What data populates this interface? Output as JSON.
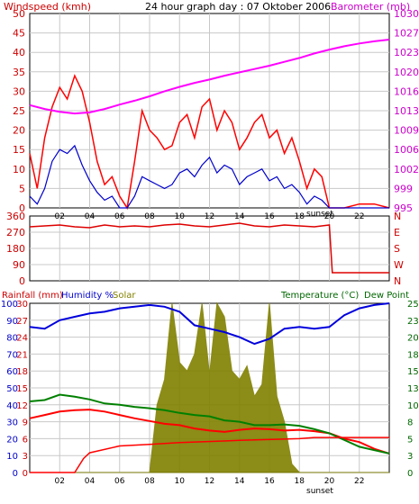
{
  "panel1": {
    "header_left": "Windspeed (kmh)",
    "header_center": "24 hour graph day : 07 Oktober 2006",
    "header_right": "Barometer (mb)",
    "left_ticks": [
      "0",
      "5",
      "10",
      "15",
      "20",
      "25",
      "30",
      "35",
      "40",
      "45",
      "50"
    ],
    "right_ticks": [
      "995",
      "999",
      "1002",
      "1006",
      "1009",
      "1013",
      "1016",
      "1020",
      "1023",
      "1027",
      "1030"
    ],
    "x_ticks": [
      "02",
      "04",
      "06",
      "08",
      "10",
      "12",
      "14",
      "16",
      "18",
      "20",
      "22"
    ],
    "sunset_label": "sunset"
  },
  "panel2": {
    "left_ticks": [
      "0",
      "90",
      "180",
      "270",
      "360"
    ],
    "right_ticks": [
      "N",
      "W",
      "S",
      "E",
      "N"
    ]
  },
  "panel3": {
    "header_rain": "Rainfall (mm)",
    "header_humidity": "Humidity %",
    "header_solar": "Solar",
    "header_temp": "Temperature (°C)",
    "header_dew": "Dew Point",
    "humidity_ticks": [
      "0",
      "10",
      "20",
      "30",
      "40",
      "50",
      "60",
      "70",
      "80",
      "90",
      "100"
    ],
    "rain_ticks": [
      "0",
      "3",
      "6",
      "9",
      "12",
      "15",
      "18",
      "21",
      "24",
      "27",
      "30"
    ],
    "right_ticks": [
      "0",
      "3",
      "5",
      "8",
      "10",
      "13",
      "15",
      "18",
      "20",
      "23",
      "25"
    ],
    "x_ticks": [
      "02",
      "04",
      "06",
      "08",
      "10",
      "12",
      "14",
      "16",
      "18",
      "20",
      "22"
    ],
    "sunset_label": "sunset"
  },
  "colors": {
    "wind": "#ff0000",
    "gust_avg": "#0000cc",
    "barometer": "#ff00ff",
    "direction": "#dd0000",
    "humidity": "#0000dd",
    "temperature": "#ff0000",
    "dewpoint": "#008000",
    "solar": "#808000",
    "rain": "#ff0000",
    "left_axis_text": "#cc0000",
    "right_axis_text": "#cc00cc",
    "temp_axis_text": "#006600"
  },
  "chart_data": [
    {
      "type": "line",
      "title": "24 hour graph day : 07 Oktober 2006",
      "xlabel": "",
      "x_range_hours": [
        0,
        24
      ],
      "ylim_left": [
        0,
        50
      ],
      "ylim_right": [
        995,
        1030
      ],
      "grid": true,
      "series": [
        {
          "name": "Windspeed (kmh)",
          "axis": "left",
          "x": [
            0,
            0.5,
            1,
            1.5,
            2,
            2.5,
            3,
            3.5,
            4,
            4.5,
            5,
            5.5,
            6,
            6.5,
            7,
            7.5,
            8,
            8.5,
            9,
            9.5,
            10,
            10.5,
            11,
            11.5,
            12,
            12.5,
            13,
            13.5,
            14,
            14.5,
            15,
            15.5,
            16,
            16.5,
            17,
            17.5,
            18,
            18.5,
            19,
            19.5,
            20,
            21,
            22,
            23,
            24
          ],
          "values": [
            14,
            5,
            18,
            26,
            31,
            28,
            34,
            30,
            22,
            12,
            6,
            8,
            3,
            0,
            12,
            25,
            20,
            18,
            15,
            16,
            22,
            24,
            18,
            26,
            28,
            20,
            25,
            22,
            15,
            18,
            22,
            24,
            18,
            20,
            14,
            18,
            12,
            5,
            10,
            8,
            0,
            0,
            1,
            1,
            0
          ]
        },
        {
          "name": "Average wind",
          "axis": "left",
          "x": [
            0,
            0.5,
            1,
            1.5,
            2,
            2.5,
            3,
            3.5,
            4,
            4.5,
            5,
            5.5,
            6,
            6.5,
            7,
            7.5,
            8,
            8.5,
            9,
            9.5,
            10,
            10.5,
            11,
            11.5,
            12,
            12.5,
            13,
            13.5,
            14,
            14.5,
            15,
            15.5,
            16,
            16.5,
            17,
            17.5,
            18,
            18.5,
            19,
            19.5,
            20,
            21,
            22,
            23,
            24
          ],
          "values": [
            3,
            1,
            5,
            12,
            15,
            14,
            16,
            11,
            7,
            4,
            2,
            3,
            0,
            0,
            3,
            8,
            7,
            6,
            5,
            6,
            9,
            10,
            8,
            11,
            13,
            9,
            11,
            10,
            6,
            8,
            9,
            10,
            7,
            8,
            5,
            6,
            4,
            1,
            3,
            2,
            0,
            0,
            0,
            0,
            0
          ]
        },
        {
          "name": "Barometer (mb)",
          "axis": "right",
          "x": [
            0,
            1,
            2,
            3,
            4,
            5,
            6,
            7,
            8,
            9,
            10,
            11,
            12,
            13,
            14,
            15,
            16,
            17,
            18,
            19,
            20,
            21,
            22,
            23,
            24
          ],
          "values": [
            1013.5,
            1012.8,
            1012.3,
            1012.0,
            1012.2,
            1012.8,
            1013.6,
            1014.3,
            1015.1,
            1016.0,
            1016.8,
            1017.5,
            1018.1,
            1018.8,
            1019.4,
            1020.0,
            1020.6,
            1021.3,
            1022.0,
            1022.8,
            1023.5,
            1024.1,
            1024.6,
            1025.0,
            1025.3
          ]
        }
      ]
    },
    {
      "type": "line",
      "title": "",
      "x_range_hours": [
        0,
        24
      ],
      "ylim": [
        0,
        360
      ],
      "series": [
        {
          "name": "Wind direction",
          "x": [
            0,
            1,
            2,
            3,
            4,
            5,
            6,
            7,
            8,
            9,
            10,
            11,
            12,
            13,
            14,
            15,
            16,
            17,
            18,
            19,
            20,
            20.2,
            21,
            22,
            23,
            24
          ],
          "values": [
            300,
            305,
            310,
            300,
            295,
            310,
            300,
            305,
            300,
            310,
            315,
            305,
            300,
            310,
            320,
            305,
            300,
            310,
            305,
            300,
            310,
            45,
            45,
            45,
            45,
            45
          ]
        }
      ]
    },
    {
      "type": "line",
      "title": "",
      "x_range_hours": [
        0,
        24
      ],
      "ylim_humidity": [
        0,
        100
      ],
      "ylim_rain": [
        0,
        30
      ],
      "ylim_temperature": [
        0,
        25
      ],
      "series": [
        {
          "name": "Humidity %",
          "x": [
            0,
            1,
            2,
            3,
            4,
            5,
            6,
            7,
            8,
            9,
            10,
            11,
            12,
            13,
            14,
            15,
            16,
            17,
            18,
            19,
            20,
            21,
            22,
            23,
            24
          ],
          "values": [
            86,
            85,
            90,
            92,
            94,
            95,
            97,
            98,
            99,
            98,
            95,
            87,
            85,
            83,
            80,
            76,
            79,
            85,
            86,
            85,
            86,
            93,
            97,
            99,
            100
          ]
        },
        {
          "name": "Temperature (°C)",
          "x": [
            0,
            1,
            2,
            3,
            4,
            5,
            6,
            7,
            8,
            9,
            10,
            11,
            12,
            13,
            14,
            15,
            16,
            17,
            18,
            19,
            20,
            21,
            22,
            23,
            24
          ],
          "values": [
            8,
            8.5,
            9,
            9.2,
            9.3,
            9.0,
            8.5,
            8.0,
            7.6,
            7.2,
            7.0,
            6.5,
            6.2,
            6.0,
            6.3,
            6.5,
            6.4,
            6.2,
            6.3,
            6.1,
            5.8,
            5.0,
            4.5,
            3.5,
            2.8
          ]
        },
        {
          "name": "Dew Point",
          "x": [
            0,
            1,
            2,
            3,
            4,
            5,
            6,
            7,
            8,
            9,
            10,
            11,
            12,
            13,
            14,
            15,
            16,
            17,
            18,
            19,
            20,
            21,
            22,
            23,
            24
          ],
          "values": [
            10.5,
            10.7,
            11.5,
            11.2,
            10.8,
            10.2,
            10.0,
            9.7,
            9.5,
            9.2,
            8.8,
            8.5,
            8.3,
            7.7,
            7.5,
            7.0,
            7.0,
            7.1,
            6.9,
            6.4,
            5.8,
            4.8,
            3.8,
            3.3,
            2.8
          ]
        },
        {
          "name": "Solar",
          "x": [
            0,
            8,
            8.5,
            9,
            9.5,
            10,
            10.5,
            11,
            11.5,
            12,
            12.5,
            13,
            13.5,
            14,
            14.5,
            15,
            15.5,
            16,
            16.5,
            17,
            17.5,
            18,
            24
          ],
          "values": [
            0,
            0,
            40,
            55,
            100,
            65,
            60,
            70,
            100,
            58,
            100,
            92,
            60,
            55,
            63,
            45,
            52,
            100,
            45,
            30,
            5,
            0,
            0
          ]
        },
        {
          "name": "Rainfall (mm)",
          "x": [
            0,
            3.0,
            3.6,
            4,
            6,
            8,
            10,
            14,
            18,
            19,
            20,
            21,
            22,
            23,
            24
          ],
          "values": [
            0,
            0,
            2.5,
            3.5,
            4.7,
            5.0,
            5.3,
            5.7,
            6.0,
            6.2,
            6.2,
            6.2,
            6.2,
            6.2,
            6.2
          ]
        }
      ]
    }
  ]
}
